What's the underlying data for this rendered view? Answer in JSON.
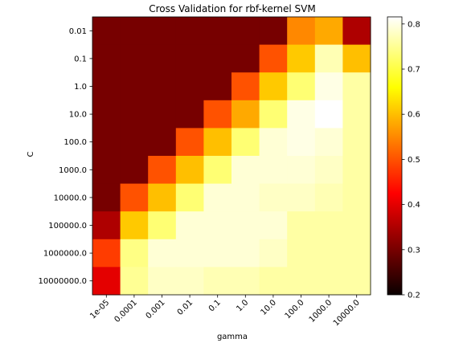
{
  "chart_data": {
    "type": "heatmap",
    "title": "Cross Validation for rbf-kernel SVM",
    "xlabel": "gamma",
    "ylabel": "C",
    "x_categories": [
      "1e-05",
      "0.0001",
      "0.001",
      "0.01",
      "0.1",
      "1.0",
      "10.0",
      "100.0",
      "1000.0",
      "10000.0"
    ],
    "y_categories": [
      "0.01",
      "0.1",
      "1.0",
      "10.0",
      "100.0",
      "1000.0",
      "10000.0",
      "100000.0",
      "1000000.0",
      "10000000.0"
    ],
    "values": [
      [
        0.3,
        0.3,
        0.3,
        0.3,
        0.3,
        0.3,
        0.3,
        0.55,
        0.58,
        0.35
      ],
      [
        0.3,
        0.3,
        0.3,
        0.3,
        0.3,
        0.3,
        0.5,
        0.61,
        0.77,
        0.6
      ],
      [
        0.3,
        0.3,
        0.3,
        0.3,
        0.3,
        0.5,
        0.61,
        0.73,
        0.8,
        0.76
      ],
      [
        0.3,
        0.3,
        0.3,
        0.3,
        0.5,
        0.58,
        0.73,
        0.8,
        0.82,
        0.76
      ],
      [
        0.3,
        0.3,
        0.3,
        0.5,
        0.6,
        0.73,
        0.79,
        0.8,
        0.79,
        0.76
      ],
      [
        0.3,
        0.3,
        0.5,
        0.6,
        0.73,
        0.79,
        0.79,
        0.79,
        0.78,
        0.76
      ],
      [
        0.3,
        0.5,
        0.6,
        0.73,
        0.79,
        0.79,
        0.78,
        0.78,
        0.77,
        0.76
      ],
      [
        0.35,
        0.61,
        0.73,
        0.79,
        0.79,
        0.79,
        0.79,
        0.76,
        0.76,
        0.76
      ],
      [
        0.48,
        0.74,
        0.79,
        0.79,
        0.79,
        0.79,
        0.78,
        0.76,
        0.76,
        0.76
      ],
      [
        0.4,
        0.75,
        0.78,
        0.78,
        0.77,
        0.77,
        0.76,
        0.76,
        0.76,
        0.76
      ]
    ],
    "colormap": "hot",
    "vmin": 0.2,
    "vmax": 0.8157,
    "colorbar_ticks": [
      "0.2",
      "0.3",
      "0.4",
      "0.5",
      "0.6",
      "0.7",
      "0.8"
    ]
  }
}
